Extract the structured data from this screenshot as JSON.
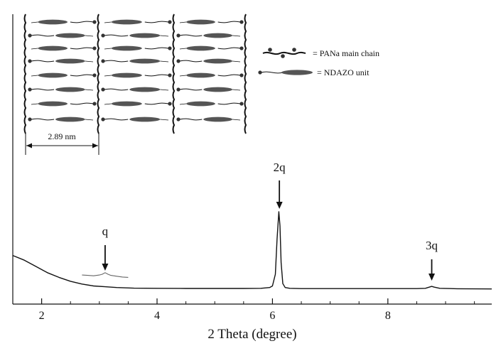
{
  "chart_data": {
    "type": "line",
    "xlabel": "2 Theta (degree)",
    "ylabel": "",
    "xlim": [
      1.5,
      9.8
    ],
    "xticks": [
      2,
      4,
      6,
      8
    ],
    "yticks_shown": false,
    "series": [
      {
        "x": [
          1.5,
          1.7,
          1.9,
          2.1,
          2.3,
          2.5,
          2.7,
          2.9,
          3.1,
          3.3,
          3.6,
          4.0,
          4.5,
          5.0,
          5.5,
          5.8,
          5.95,
          6.0,
          6.05,
          6.08,
          6.11,
          6.13,
          6.15,
          6.18,
          6.22,
          6.3,
          6.5,
          7.0,
          7.5,
          8.0,
          8.5,
          8.65,
          8.72,
          8.76,
          8.8,
          8.9,
          9.2,
          9.8
        ],
        "y": [
          0.44,
          0.38,
          0.3,
          0.22,
          0.16,
          0.11,
          0.075,
          0.05,
          0.04,
          0.03,
          0.022,
          0.02,
          0.018,
          0.018,
          0.018,
          0.02,
          0.03,
          0.05,
          0.2,
          0.65,
          1.0,
          0.82,
          0.35,
          0.08,
          0.03,
          0.02,
          0.016,
          0.016,
          0.016,
          0.016,
          0.016,
          0.02,
          0.035,
          0.045,
          0.035,
          0.02,
          0.015,
          0.012
        ]
      },
      {
        "x": [
          2.7,
          2.8,
          2.9,
          3.0,
          3.05,
          3.1,
          3.15,
          3.2,
          3.3,
          3.4,
          3.5
        ],
        "y": [
          0.19,
          0.185,
          0.18,
          0.19,
          0.2,
          0.22,
          0.2,
          0.185,
          0.175,
          0.165,
          0.16
        ],
        "color": "#666666"
      }
    ],
    "annotations": [
      {
        "text": "q",
        "x": 3.1
      },
      {
        "text": "2q",
        "x": 6.12
      },
      {
        "text": "3q",
        "x": 8.76
      }
    ],
    "inset": {
      "distance_label": "2.89 nm",
      "legend": [
        {
          "label": "= PANa main chain"
        },
        {
          "label": "= NDAZO unit"
        }
      ],
      "colors": {
        "chain": "#111111",
        "unit": "#555555"
      }
    }
  }
}
